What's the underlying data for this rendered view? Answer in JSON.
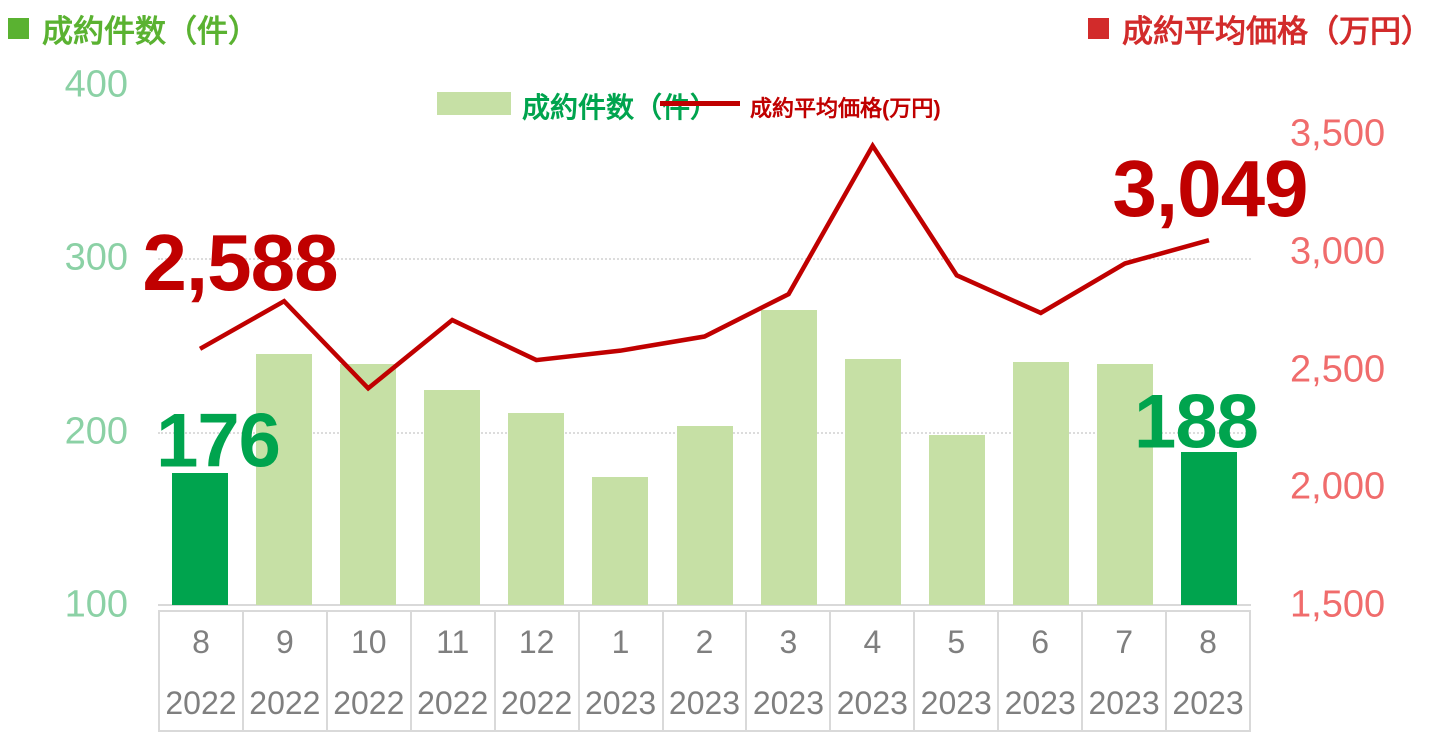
{
  "header": {
    "left_title": "成約件数（件）",
    "right_title": "成約平均価格（万円）"
  },
  "legend": {
    "bar_label": "成約件数（件）",
    "line_label": "成約平均価格(万円)"
  },
  "colors": {
    "bar_light": "#c6e0a5",
    "bar_dark": "#00a44e",
    "line": "#c00000",
    "left_title_green": "#5ab231",
    "right_title_red": "#d22b2b",
    "left_tick_green": "#8bd1a5",
    "right_tick_red": "#f06c6c",
    "x_label_gray": "#7f7f7f",
    "grid_gray": "#d9d9d9"
  },
  "chart_data": {
    "type": "bar+line",
    "categories": [
      {
        "month": "8",
        "year": "2022"
      },
      {
        "month": "9",
        "year": "2022"
      },
      {
        "month": "10",
        "year": "2022"
      },
      {
        "month": "11",
        "year": "2022"
      },
      {
        "month": "12",
        "year": "2022"
      },
      {
        "month": "1",
        "year": "2023"
      },
      {
        "month": "2",
        "year": "2023"
      },
      {
        "month": "3",
        "year": "2023"
      },
      {
        "month": "4",
        "year": "2023"
      },
      {
        "month": "5",
        "year": "2023"
      },
      {
        "month": "6",
        "year": "2023"
      },
      {
        "month": "7",
        "year": "2023"
      },
      {
        "month": "8",
        "year": "2023"
      }
    ],
    "series": [
      {
        "name": "成約件数（件）",
        "type": "bar",
        "axis": "left",
        "values": [
          176,
          245,
          239,
          224,
          211,
          174,
          203,
          270,
          242,
          198,
          240,
          239,
          188
        ],
        "highlight_indexes": [
          0,
          12
        ]
      },
      {
        "name": "成約平均価格(万円)",
        "type": "line",
        "axis": "right",
        "values": [
          2588,
          2790,
          2420,
          2710,
          2540,
          2580,
          2640,
          2820,
          3450,
          2900,
          2740,
          2950,
          3049
        ]
      }
    ],
    "left_axis": {
      "label": "成約件数（件）",
      "min": 100,
      "max": 400,
      "ticks": [
        400,
        300,
        200,
        100
      ]
    },
    "right_axis": {
      "label": "成約平均価格（万円）",
      "min": 1500,
      "ticks": [
        3500,
        3000,
        2500,
        2000,
        1500
      ]
    },
    "gridlines_left_values": [
      300,
      200
    ],
    "point_labels": [
      {
        "series": "bar",
        "index": 0,
        "text": "176"
      },
      {
        "series": "bar",
        "index": 12,
        "text": "188"
      },
      {
        "series": "line",
        "index": 0,
        "text": "2,588"
      },
      {
        "series": "line",
        "index": 12,
        "text": "3,049"
      }
    ]
  }
}
